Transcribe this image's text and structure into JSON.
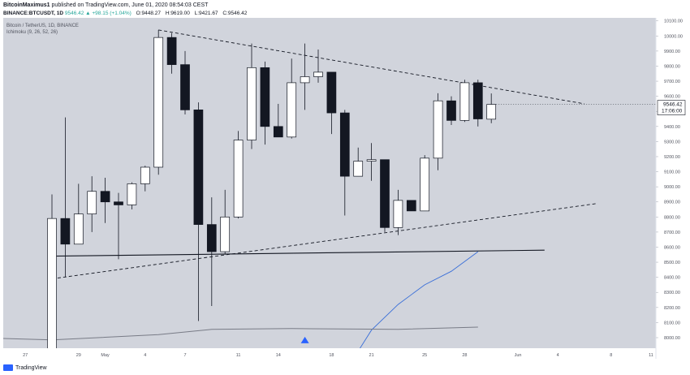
{
  "header": {
    "author": "BitcoinMaximus1",
    "published": "published on TradingView.com, June 01, 2020 08:54:03 CEST",
    "symbol": "BINANCE:BTCUSDT, 1D",
    "change": "9546.42 ▲ +98.15 (+1.04%)",
    "o_label": "O:",
    "o": "9448.27",
    "h_label": "H:",
    "h": "9619.00",
    "l_label": "L:",
    "l": "9421.67",
    "c_label": "C:",
    "c": "9546.42"
  },
  "legend": {
    "title": "Bitcoin / TetherUS, 1D, BINANCE",
    "indicator": "Ichimoku (9, 26, 52, 26)"
  },
  "price_tag": {
    "price": "9546.42",
    "countdown": "17:06:00"
  },
  "footer": {
    "brand": "TradingView"
  },
  "colors": {
    "background": "#d1d4dc",
    "up_body": "#ffffff",
    "down_body": "#131722",
    "wick": "#131722",
    "ichimoku_line": "#3a6fd8",
    "baseline": "#787b86",
    "arrow": "#2962ff"
  },
  "chart_data": {
    "type": "candlestick",
    "ylim": [
      7930,
      10120
    ],
    "y_ticks": [
      8000,
      8100,
      8200,
      8300,
      8400,
      8500,
      8600,
      8700,
      8800,
      8900,
      9000,
      9100,
      9200,
      9300,
      9400,
      9500,
      9600,
      9700,
      9800,
      9900,
      10000,
      10100
    ],
    "x_tick_labels": [
      "27",
      "29",
      "May",
      "4",
      "7",
      "11",
      "14",
      "18",
      "21",
      "25",
      "28",
      "Jun",
      "4",
      "8",
      "11"
    ],
    "candles": [
      {
        "o": 7770,
        "h": 8950,
        "l": 7690,
        "c": 8790
      },
      {
        "o": 8790,
        "h": 9460,
        "l": 8400,
        "c": 8620
      },
      {
        "o": 8620,
        "h": 9020,
        "l": 8620,
        "c": 8820
      },
      {
        "o": 8820,
        "h": 9070,
        "l": 8700,
        "c": 8970
      },
      {
        "o": 8970,
        "h": 9060,
        "l": 8760,
        "c": 8900
      },
      {
        "o": 8900,
        "h": 8960,
        "l": 8520,
        "c": 8880
      },
      {
        "o": 8880,
        "h": 9030,
        "l": 8850,
        "c": 9020
      },
      {
        "o": 9020,
        "h": 9140,
        "l": 8970,
        "c": 9130
      },
      {
        "o": 9130,
        "h": 10040,
        "l": 9080,
        "c": 9990
      },
      {
        "o": 9990,
        "h": 10020,
        "l": 9750,
        "c": 9810
      },
      {
        "o": 9810,
        "h": 9900,
        "l": 9480,
        "c": 9510
      },
      {
        "o": 9510,
        "h": 9560,
        "l": 8110,
        "c": 8750
      },
      {
        "o": 8750,
        "h": 8930,
        "l": 8210,
        "c": 8570
      },
      {
        "o": 8570,
        "h": 8980,
        "l": 8550,
        "c": 8800
      },
      {
        "o": 8800,
        "h": 9370,
        "l": 8790,
        "c": 9310
      },
      {
        "o": 9310,
        "h": 9950,
        "l": 9250,
        "c": 9790
      },
      {
        "o": 9790,
        "h": 9830,
        "l": 9280,
        "c": 9400
      },
      {
        "o": 9400,
        "h": 9550,
        "l": 9330,
        "c": 9330
      },
      {
        "o": 9330,
        "h": 9850,
        "l": 9320,
        "c": 9690
      },
      {
        "o": 9690,
        "h": 9950,
        "l": 9510,
        "c": 9730
      },
      {
        "o": 9730,
        "h": 9910,
        "l": 9690,
        "c": 9760
      },
      {
        "o": 9760,
        "h": 9760,
        "l": 9350,
        "c": 9490
      },
      {
        "o": 9490,
        "h": 9510,
        "l": 8810,
        "c": 9070
      },
      {
        "o": 9070,
        "h": 9260,
        "l": 9070,
        "c": 9170
      },
      {
        "o": 9170,
        "h": 9290,
        "l": 9040,
        "c": 9180
      },
      {
        "o": 9180,
        "h": 9180,
        "l": 8700,
        "c": 8730
      },
      {
        "o": 8730,
        "h": 8980,
        "l": 8680,
        "c": 8910
      },
      {
        "o": 8910,
        "h": 8910,
        "l": 8840,
        "c": 8840
      },
      {
        "o": 8840,
        "h": 9210,
        "l": 8840,
        "c": 9190
      },
      {
        "o": 9190,
        "h": 9620,
        "l": 9110,
        "c": 9570
      },
      {
        "o": 9570,
        "h": 9600,
        "l": 9410,
        "c": 9440
      },
      {
        "o": 9440,
        "h": 9710,
        "l": 9430,
        "c": 9690
      },
      {
        "o": 9690,
        "h": 9710,
        "l": 9400,
        "c": 9450
      },
      {
        "o": 9448.27,
        "h": 9619.0,
        "l": 9421.67,
        "c": 9546.42
      }
    ],
    "series": [
      {
        "type": "line",
        "points": [
          [
            22,
            7770
          ],
          [
            24,
            8050
          ],
          [
            26,
            8220
          ],
          [
            28,
            8350
          ],
          [
            30,
            8440
          ],
          [
            32,
            8570
          ]
        ]
      },
      {
        "type": "line",
        "points": [
          [
            -4,
            7995
          ],
          [
            0,
            7985
          ],
          [
            8,
            8020
          ],
          [
            12,
            8055
          ],
          [
            18,
            8060
          ],
          [
            26,
            8055
          ],
          [
            32,
            8070
          ]
        ]
      },
      {
        "type": "horizontal",
        "points": [
          [
            0,
            8540
          ],
          [
            37,
            8580
          ]
        ]
      },
      {
        "type": "dashed",
        "points": [
          [
            0,
            8390
          ],
          [
            41,
            8890
          ]
        ]
      },
      {
        "type": "dashed",
        "points": [
          [
            8,
            10040
          ],
          [
            40,
            9550
          ]
        ]
      }
    ],
    "markers": [
      {
        "type": "triangle-up",
        "x": 19,
        "y": 7990
      }
    ]
  }
}
